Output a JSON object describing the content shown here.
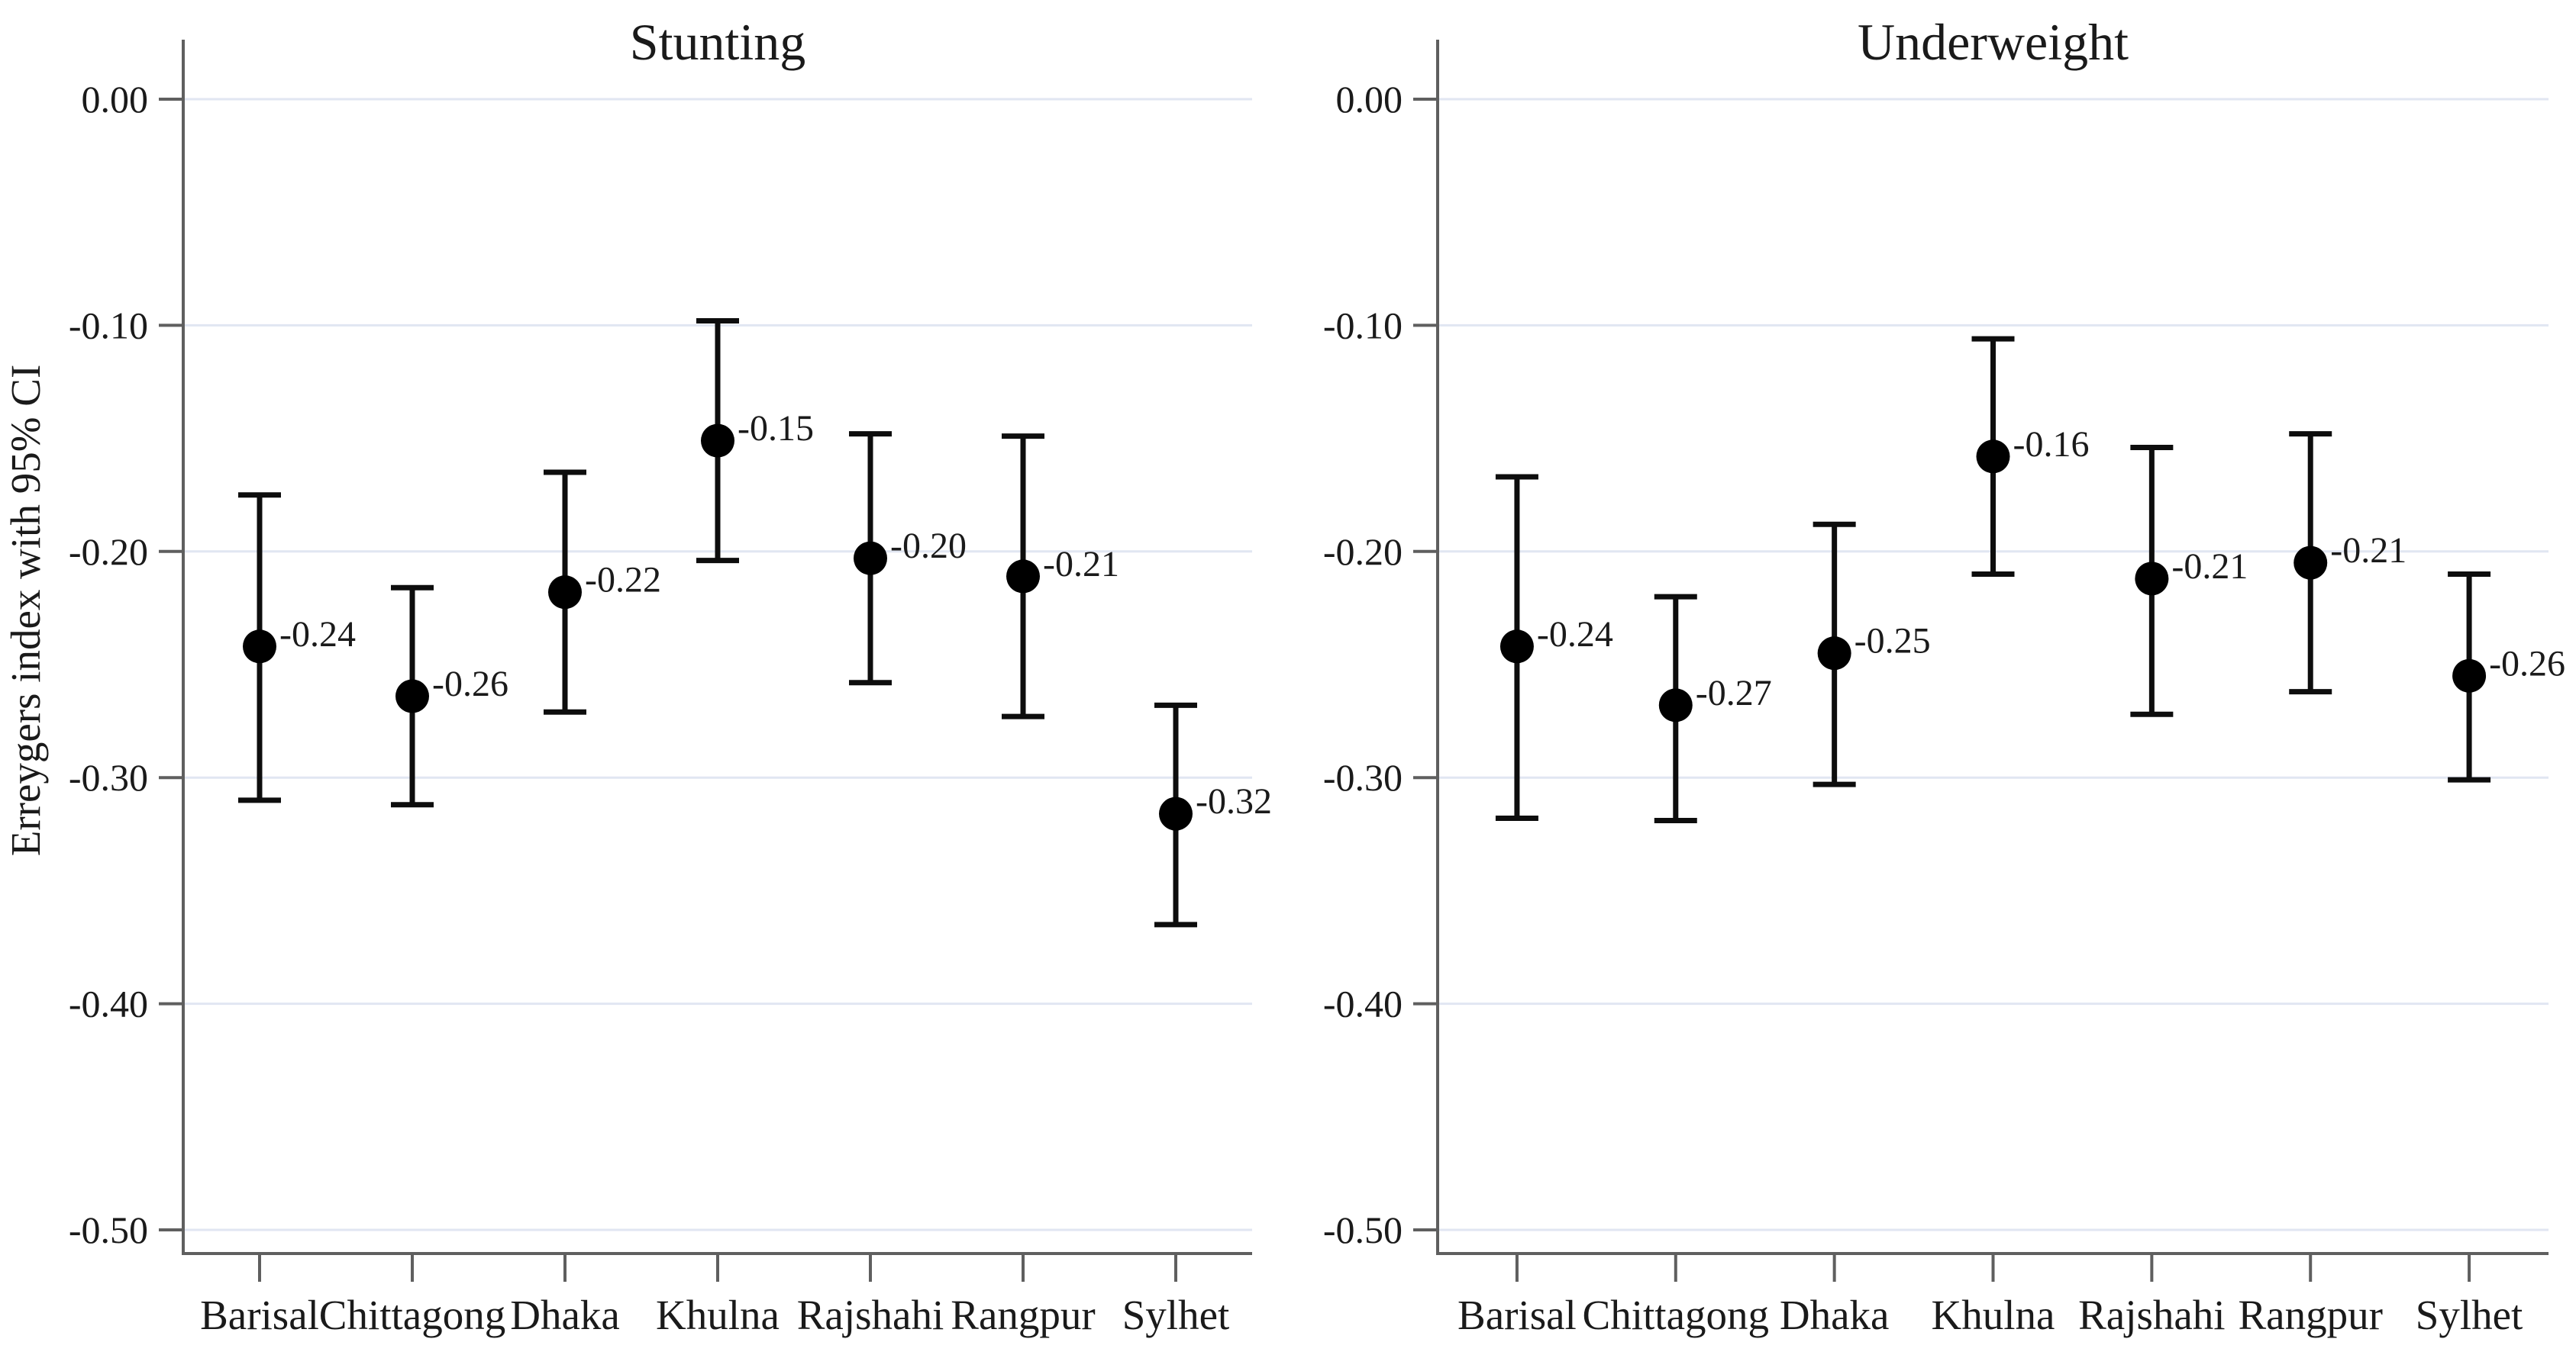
{
  "figure": {
    "background": "#ffffff",
    "y_axis_title": "Erreygers index with 95% CI",
    "colors": {
      "marker": "#000000",
      "error_bar": "#0d0d0d",
      "gridline": "#e1e6f2",
      "axis_line": "#5f5f5f",
      "tick": "#5f5f5f",
      "text": "#1a1a1a"
    }
  },
  "chart_data": {
    "type": "scatter",
    "subtype": "point-estimates-with-95ci-error-bars",
    "categories": [
      "Barisal",
      "Chittagong",
      "Dhaka",
      "Khulna",
      "Rajshahi",
      "Rangpur",
      "Sylhet"
    ],
    "y_axis": {
      "label": "Erreygers index with 95% CI",
      "tick_labels": [
        "0.00",
        "-0.10",
        "-0.20",
        "-0.30",
        "-0.40",
        "-0.50"
      ],
      "tick_values": [
        0.0,
        -0.1,
        -0.2,
        -0.3,
        -0.4,
        -0.5
      ],
      "range": [
        0.025,
        -0.512
      ],
      "grid": true,
      "gridline_step": 0.1
    },
    "legend": "none",
    "panels": [
      {
        "title": "Stunting",
        "points": [
          {
            "category": "Barisal",
            "estimate": -0.242,
            "label": "-0.24",
            "ci_low": -0.31,
            "ci_high": -0.175
          },
          {
            "category": "Chittagong",
            "estimate": -0.264,
            "label": "-0.26",
            "ci_low": -0.312,
            "ci_high": -0.216
          },
          {
            "category": "Dhaka",
            "estimate": -0.218,
            "label": "-0.22",
            "ci_low": -0.271,
            "ci_high": -0.165
          },
          {
            "category": "Khulna",
            "estimate": -0.151,
            "label": "-0.15",
            "ci_low": -0.204,
            "ci_high": -0.098
          },
          {
            "category": "Rajshahi",
            "estimate": -0.203,
            "label": "-0.20",
            "ci_low": -0.258,
            "ci_high": -0.148
          },
          {
            "category": "Rangpur",
            "estimate": -0.211,
            "label": "-0.21",
            "ci_low": -0.273,
            "ci_high": -0.149
          },
          {
            "category": "Sylhet",
            "estimate": -0.316,
            "label": "-0.32",
            "ci_low": -0.365,
            "ci_high": -0.268
          }
        ]
      },
      {
        "title": "Underweight",
        "points": [
          {
            "category": "Barisal",
            "estimate": -0.242,
            "label": "-0.24",
            "ci_low": -0.318,
            "ci_high": -0.167
          },
          {
            "category": "Chittagong",
            "estimate": -0.268,
            "label": "-0.27",
            "ci_low": -0.319,
            "ci_high": -0.22
          },
          {
            "category": "Dhaka",
            "estimate": -0.245,
            "label": "-0.25",
            "ci_low": -0.303,
            "ci_high": -0.188
          },
          {
            "category": "Khulna",
            "estimate": -0.158,
            "label": "-0.16",
            "ci_low": -0.21,
            "ci_high": -0.106
          },
          {
            "category": "Rajshahi",
            "estimate": -0.212,
            "label": "-0.21",
            "ci_low": -0.272,
            "ci_high": -0.154
          },
          {
            "category": "Rangpur",
            "estimate": -0.205,
            "label": "-0.21",
            "ci_low": -0.262,
            "ci_high": -0.148
          },
          {
            "category": "Sylhet",
            "estimate": -0.255,
            "label": "-0.26",
            "ci_low": -0.301,
            "ci_high": -0.21
          }
        ]
      }
    ]
  }
}
